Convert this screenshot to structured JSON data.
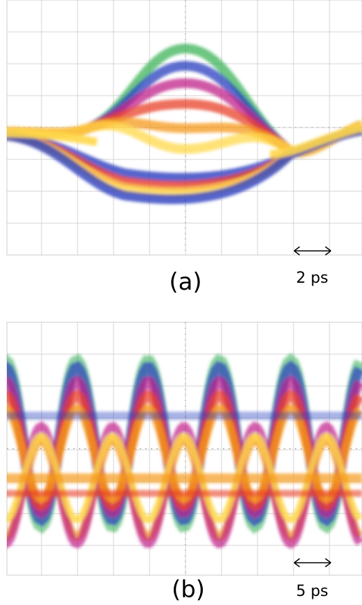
{
  "panels": [
    {
      "label": "(a)",
      "scale": "2 ps"
    },
    {
      "label": "(b)",
      "scale": "5 ps"
    }
  ]
}
